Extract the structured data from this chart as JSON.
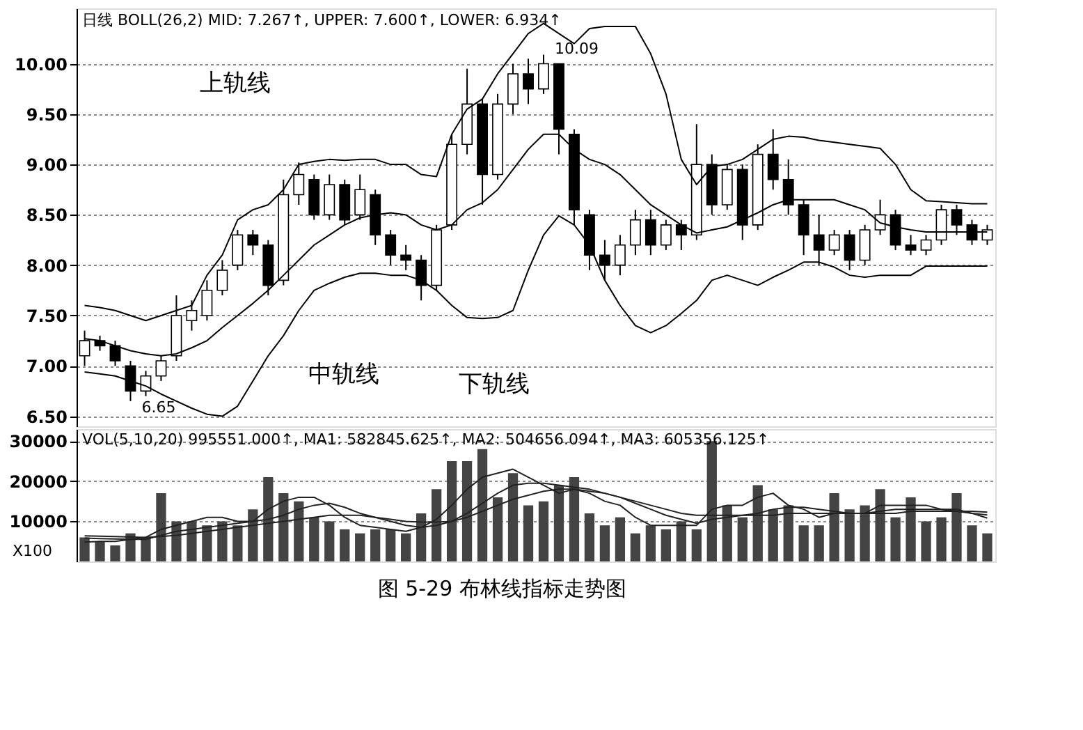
{
  "chart_data": [
    {
      "type": "candlestick",
      "grid": "y",
      "tick_labels": "y",
      "annotations": [
        "日线 BOLL(26,2) MID: 7.267↑, UPPER: 7.600↑, LOWER: 6.934↑",
        "上轨线",
        "中轨线",
        "下轨线",
        "10.09",
        "6.65"
      ],
      "categories": [
        null,
        null,
        null,
        null,
        null,
        null,
        null,
        null,
        null,
        null,
        null,
        null,
        null,
        null,
        null,
        null,
        null,
        null,
        null,
        null,
        null,
        null,
        null,
        null,
        null,
        null,
        null,
        null,
        null,
        null,
        null,
        null,
        null,
        null,
        null,
        null,
        null,
        null,
        null,
        null,
        null,
        null,
        null,
        null,
        null,
        null,
        null,
        null,
        null,
        null,
        null,
        null,
        null,
        null,
        null,
        null,
        null,
        null,
        null,
        null
      ],
      "color": "#000000",
      "ohlc": [
        [
          7.1,
          7.35,
          7.0,
          7.25
        ],
        [
          7.25,
          7.3,
          7.15,
          7.2
        ],
        [
          7.2,
          7.25,
          7.0,
          7.05
        ],
        [
          7.0,
          7.05,
          6.65,
          6.75
        ],
        [
          6.75,
          6.95,
          6.7,
          6.9
        ],
        [
          6.9,
          7.1,
          6.85,
          7.05
        ],
        [
          7.1,
          7.7,
          7.05,
          7.5
        ],
        [
          7.45,
          7.65,
          7.35,
          7.55
        ],
        [
          7.5,
          7.85,
          7.45,
          7.75
        ],
        [
          7.75,
          8.05,
          7.7,
          7.95
        ],
        [
          8.0,
          8.35,
          7.95,
          8.3
        ],
        [
          8.3,
          8.35,
          8.1,
          8.2
        ],
        [
          8.2,
          8.25,
          7.7,
          7.8
        ],
        [
          7.85,
          8.85,
          7.8,
          8.7
        ],
        [
          8.7,
          9.02,
          8.6,
          8.9
        ],
        [
          8.85,
          8.9,
          8.45,
          8.5
        ],
        [
          8.5,
          8.9,
          8.45,
          8.8
        ],
        [
          8.8,
          8.85,
          8.4,
          8.45
        ],
        [
          8.5,
          8.9,
          8.45,
          8.75
        ],
        [
          8.7,
          8.75,
          8.2,
          8.3
        ],
        [
          8.3,
          8.35,
          8.0,
          8.1
        ],
        [
          8.1,
          8.2,
          7.95,
          8.05
        ],
        [
          8.05,
          8.1,
          7.65,
          7.8
        ],
        [
          7.8,
          8.4,
          7.75,
          8.35
        ],
        [
          8.4,
          9.3,
          8.35,
          9.2
        ],
        [
          9.2,
          9.95,
          9.1,
          9.6
        ],
        [
          9.6,
          9.65,
          8.6,
          8.9
        ],
        [
          8.9,
          9.7,
          8.85,
          9.6
        ],
        [
          9.6,
          10.0,
          9.5,
          9.9
        ],
        [
          9.9,
          10.05,
          9.6,
          9.75
        ],
        [
          9.75,
          10.09,
          9.7,
          10.0
        ],
        [
          10.0,
          10.0,
          9.1,
          9.35
        ],
        [
          9.3,
          9.35,
          8.4,
          8.55
        ],
        [
          8.5,
          8.55,
          7.95,
          8.1
        ],
        [
          8.1,
          8.25,
          7.85,
          8.0
        ],
        [
          8.0,
          8.3,
          7.9,
          8.2
        ],
        [
          8.2,
          8.55,
          8.1,
          8.45
        ],
        [
          8.45,
          8.55,
          8.1,
          8.2
        ],
        [
          8.2,
          8.45,
          8.15,
          8.4
        ],
        [
          8.4,
          8.45,
          8.15,
          8.3
        ],
        [
          8.3,
          9.4,
          8.25,
          9.0
        ],
        [
          9.0,
          9.1,
          8.5,
          8.6
        ],
        [
          8.6,
          9.0,
          8.55,
          8.95
        ],
        [
          8.95,
          9.0,
          8.25,
          8.4
        ],
        [
          8.4,
          9.2,
          8.35,
          9.1
        ],
        [
          9.1,
          9.35,
          8.75,
          8.85
        ],
        [
          8.85,
          9.05,
          8.5,
          8.6
        ],
        [
          8.6,
          8.65,
          8.1,
          8.3
        ],
        [
          8.3,
          8.5,
          8.0,
          8.15
        ],
        [
          8.15,
          8.35,
          8.1,
          8.3
        ],
        [
          8.3,
          8.35,
          7.95,
          8.05
        ],
        [
          8.05,
          8.4,
          8.0,
          8.35
        ],
        [
          8.35,
          8.65,
          8.3,
          8.5
        ],
        [
          8.5,
          8.55,
          8.15,
          8.2
        ],
        [
          8.2,
          8.3,
          8.1,
          8.15
        ],
        [
          8.15,
          8.3,
          8.1,
          8.25
        ],
        [
          8.25,
          8.6,
          8.2,
          8.55
        ],
        [
          8.55,
          8.6,
          8.3,
          8.4
        ],
        [
          8.4,
          8.45,
          8.2,
          8.25
        ],
        [
          8.25,
          8.4,
          8.2,
          8.35
        ]
      ],
      "series": [
        {
          "type": "line",
          "color": "#000000",
          "values": [
            7.6,
            7.58,
            7.55,
            7.5,
            7.45,
            7.5,
            7.55,
            7.6,
            7.9,
            8.1,
            8.45,
            8.55,
            8.6,
            8.75,
            9.0,
            9.03,
            9.05,
            9.04,
            9.05,
            9.05,
            9.0,
            9.0,
            8.9,
            8.88,
            9.3,
            9.55,
            9.65,
            9.9,
            10.1,
            10.3,
            10.4,
            10.3,
            10.2,
            10.35,
            10.37,
            10.37,
            10.37,
            10.1,
            9.7,
            9.05,
            8.8,
            8.98,
            9.0,
            9.05,
            9.15,
            9.25,
            9.28,
            9.27,
            9.24,
            9.22,
            9.2,
            9.18,
            9.16,
            9.0,
            8.75,
            8.64,
            8.63,
            8.62,
            8.61,
            8.61
          ]
        },
        {
          "type": "line",
          "color": "#000000",
          "values": [
            7.27,
            7.25,
            7.2,
            7.15,
            7.12,
            7.1,
            7.12,
            7.18,
            7.25,
            7.38,
            7.5,
            7.62,
            7.75,
            7.9,
            8.05,
            8.2,
            8.3,
            8.4,
            8.47,
            8.5,
            8.52,
            8.5,
            8.4,
            8.35,
            8.4,
            8.55,
            8.62,
            8.75,
            8.95,
            9.15,
            9.3,
            9.3,
            9.15,
            9.05,
            9.0,
            8.9,
            8.75,
            8.6,
            8.5,
            8.4,
            8.32,
            8.35,
            8.38,
            8.45,
            8.52,
            8.6,
            8.65,
            8.65,
            8.65,
            8.65,
            8.6,
            8.55,
            8.42,
            8.38,
            8.35,
            8.33,
            8.33,
            8.33,
            8.33,
            8.33
          ]
        },
        {
          "type": "line",
          "color": "#000000",
          "values": [
            6.94,
            6.92,
            6.9,
            6.85,
            6.8,
            6.72,
            6.65,
            6.58,
            6.52,
            6.5,
            6.6,
            6.85,
            7.1,
            7.3,
            7.55,
            7.75,
            7.82,
            7.88,
            7.92,
            7.92,
            7.9,
            7.9,
            7.85,
            7.75,
            7.6,
            7.48,
            7.47,
            7.48,
            7.55,
            7.95,
            8.3,
            8.49,
            8.4,
            8.2,
            7.85,
            7.6,
            7.4,
            7.33,
            7.4,
            7.52,
            7.65,
            7.85,
            7.9,
            7.85,
            7.8,
            7.88,
            7.95,
            8.03,
            8.03,
            7.98,
            7.9,
            7.88,
            7.9,
            7.9,
            7.9,
            7.99,
            7.99,
            7.99,
            7.99,
            7.99
          ]
        }
      ],
      "ylim": [
        6.4,
        10.55
      ],
      "yticks": [
        {
          "value": 6.5,
          "label": "6.50"
        },
        {
          "value": 7.0,
          "label": "7.00"
        },
        {
          "value": 7.5,
          "label": "7.50"
        },
        {
          "value": 8.0,
          "label": "8.00"
        },
        {
          "value": 8.5,
          "label": "8.50"
        },
        {
          "value": 9.0,
          "label": "9.00"
        },
        {
          "value": 9.5,
          "label": "9.50"
        },
        {
          "value": 10.0,
          "label": "10.00"
        }
      ]
    },
    {
      "type": "bar",
      "grid": "y",
      "tick_labels": "y",
      "title": "图 5-29 布林线指标走势图",
      "annotations": [
        "VOL(5,10,20) 995551.000↑, MA1: 582845.625↑, MA2: 504656.094↑, MA3: 605356.125↑",
        "X100"
      ],
      "categories": [
        null,
        null,
        null,
        null,
        null,
        null,
        null,
        null,
        null,
        null,
        null,
        null,
        null,
        null,
        null,
        null,
        null,
        null,
        null,
        null,
        null,
        null,
        null,
        null,
        null,
        null,
        null,
        null,
        null,
        null,
        null,
        null,
        null,
        null,
        null,
        null,
        null,
        null,
        null,
        null,
        null,
        null,
        null,
        null,
        null,
        null,
        null,
        null,
        null,
        null,
        null,
        null,
        null,
        null,
        null,
        null,
        null,
        null,
        null,
        null
      ],
      "series": [
        {
          "type": "bar",
          "color": "#444444",
          "values": [
            6000,
            5000,
            4000,
            7000,
            6000,
            17000,
            10000,
            10000,
            9000,
            10000,
            9000,
            13000,
            21000,
            17000,
            15000,
            11000,
            10000,
            8000,
            7000,
            8000,
            8000,
            7000,
            12000,
            18000,
            25000,
            25000,
            28000,
            16000,
            22000,
            14000,
            15000,
            19000,
            21000,
            12000,
            9000,
            11000,
            7000,
            9000,
            8000,
            10000,
            8000,
            30000,
            14000,
            11000,
            19000,
            13000,
            14000,
            9000,
            9000,
            17000,
            13000,
            14000,
            18000,
            11000,
            16000,
            10000,
            11000,
            17000,
            9000,
            7000
          ]
        },
        {
          "type": "line",
          "color": "#222222",
          "values": [
            4800,
            5000,
            5000,
            5500,
            6000,
            8000,
            9000,
            10000,
            11000,
            11000,
            10000,
            10000,
            13000,
            15000,
            16000,
            16000,
            14000,
            11000,
            9000,
            8500,
            8000,
            7500,
            8500,
            10500,
            14000,
            18000,
            21000,
            22000,
            23000,
            21000,
            19000,
            17000,
            18000,
            17000,
            15000,
            14000,
            11000,
            9000,
            9000,
            9000,
            9000,
            13000,
            14000,
            14000,
            16000,
            17000,
            14000,
            13000,
            11000,
            12000,
            12000,
            12000,
            14000,
            14000,
            14000,
            14000,
            13000,
            13000,
            12000,
            10800
          ]
        },
        {
          "type": "line",
          "color": "#222222",
          "values": [
            5800,
            5700,
            5600,
            5500,
            5500,
            6500,
            7500,
            8000,
            8500,
            9000,
            9500,
            10000,
            10500,
            11500,
            13000,
            14000,
            14500,
            13500,
            12000,
            11000,
            10000,
            9000,
            8500,
            9000,
            10000,
            12000,
            14500,
            17000,
            19000,
            19500,
            19500,
            19000,
            18500,
            18000,
            17000,
            16000,
            14500,
            13000,
            11500,
            10500,
            9500,
            10500,
            11000,
            11500,
            12000,
            13000,
            13500,
            13500,
            13000,
            12500,
            12000,
            12000,
            12500,
            13000,
            13000,
            13000,
            13000,
            12500,
            12000,
            11600
          ]
        },
        {
          "type": "line",
          "color": "#222222",
          "values": [
            6400,
            6300,
            6200,
            6100,
            6000,
            6200,
            6500,
            7000,
            7500,
            8000,
            8500,
            9000,
            9500,
            10000,
            10500,
            11000,
            11500,
            11500,
            11500,
            11000,
            10500,
            10000,
            9800,
            9800,
            10000,
            11000,
            12500,
            14000,
            15500,
            16500,
            17500,
            18000,
            18000,
            17500,
            17000,
            16000,
            15000,
            14000,
            13000,
            12000,
            11500,
            11500,
            11500,
            11500,
            11500,
            11500,
            12000,
            12000,
            12000,
            12000,
            12000,
            12000,
            12000,
            12000,
            12500,
            12500,
            12500,
            12500,
            12500,
            12300
          ]
        }
      ],
      "ylim": [
        0,
        33000
      ],
      "yticks": [
        10000,
        20000,
        30000
      ]
    }
  ]
}
